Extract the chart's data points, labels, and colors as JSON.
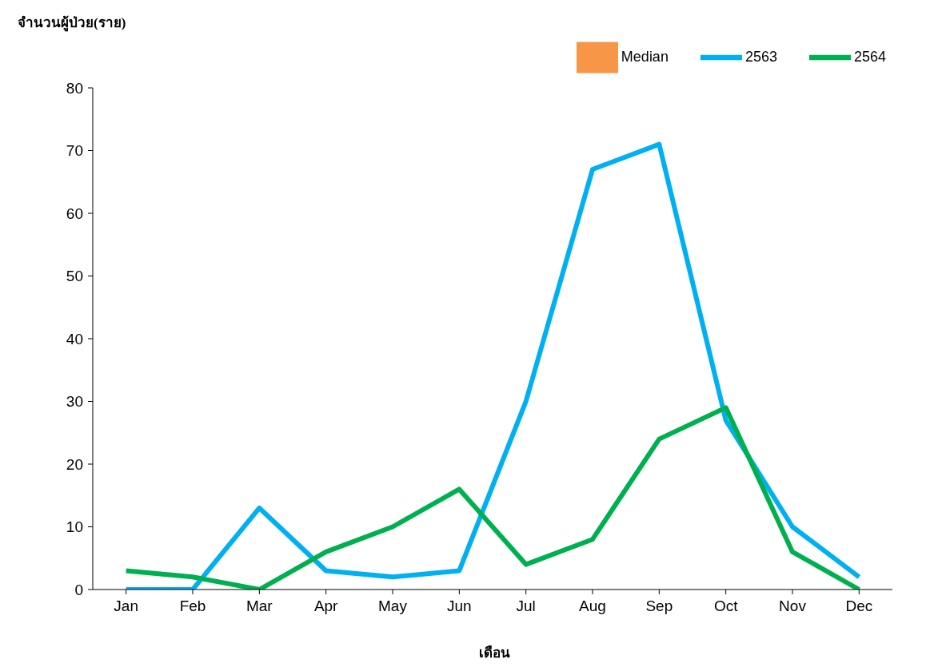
{
  "chart_data": {
    "type": "line",
    "xlabel": "เดือน",
    "ylabel": "จำนวนผู้ป่วย(ราย)",
    "categories": [
      "Jan",
      "Feb",
      "Mar",
      "Apr",
      "May",
      "Jun",
      "Jul",
      "Aug",
      "Sep",
      "Oct",
      "Nov",
      "Dec"
    ],
    "series": [
      {
        "name": "Median",
        "type": "bar",
        "color": "#f79646",
        "values": [
          0,
          0,
          0,
          0,
          0,
          0,
          0,
          0,
          0,
          0,
          0,
          0
        ]
      },
      {
        "name": "2563",
        "color": "#00b0f0",
        "values": [
          0,
          0,
          13,
          3,
          2,
          3,
          30,
          67,
          71,
          27,
          10,
          2
        ]
      },
      {
        "name": "2564",
        "color": "#00b050",
        "values": [
          3,
          2,
          0,
          6,
          10,
          16,
          4,
          8,
          24,
          29,
          6,
          0
        ]
      }
    ],
    "ylim": [
      0,
      80
    ],
    "yticks": [
      0,
      10,
      20,
      30,
      40,
      50,
      60,
      70,
      80
    ],
    "grid": false,
    "legend": "top right",
    "marker": "none",
    "line_style": "solid"
  }
}
